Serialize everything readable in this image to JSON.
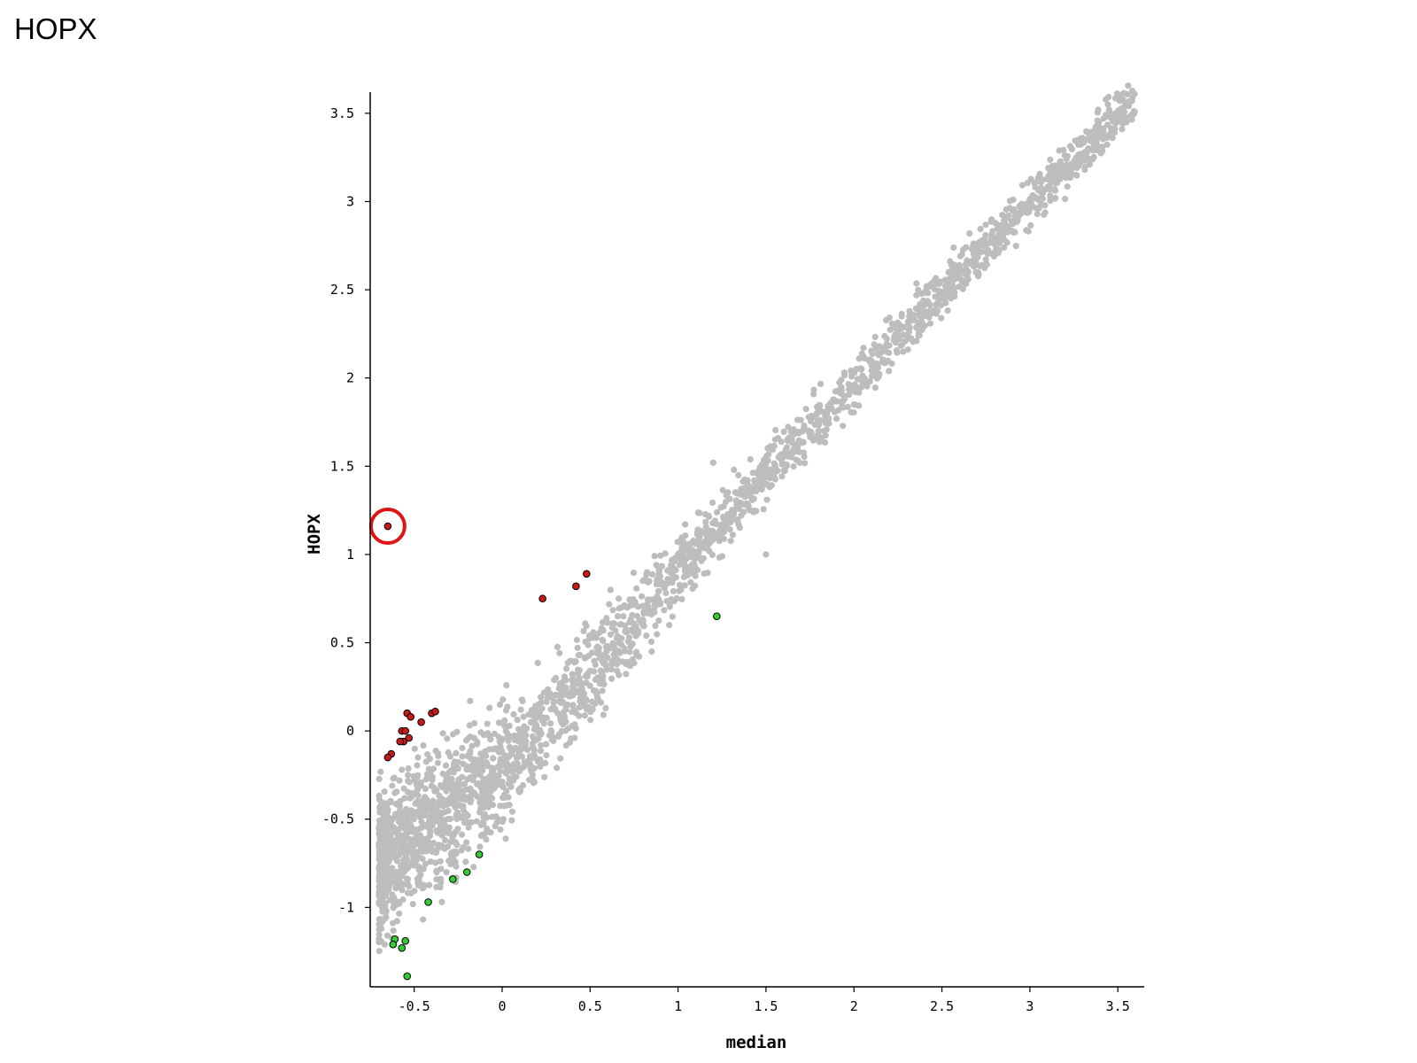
{
  "page_title": "HOPX",
  "colors": {
    "background_points": "#bdbdbd",
    "highlight_up": "#c81a1a",
    "highlight_down": "#33cc33",
    "point_outline": "#000000",
    "marker_ring": "#e01414",
    "axis": "#000000"
  },
  "chart_data": {
    "type": "scatter",
    "title": "",
    "xlabel": "median",
    "ylabel": "HOPX",
    "xlim": [
      -0.75,
      3.65
    ],
    "ylim": [
      -1.45,
      3.62
    ],
    "x_ticks": [
      -0.5,
      0,
      0.5,
      1,
      1.5,
      2,
      2.5,
      3,
      3.5
    ],
    "x_tick_labels": [
      "-0.5",
      "0",
      "0.5",
      "1",
      "1.5",
      "2",
      "2.5",
      "3",
      "3.5"
    ],
    "y_ticks": [
      -1,
      -0.5,
      0,
      0.5,
      1,
      1.5,
      2,
      2.5,
      3,
      3.5
    ],
    "y_tick_labels": [
      "-1",
      "-0.5",
      "0",
      "0.5",
      "1",
      "1.5",
      "2",
      "2.5",
      "3",
      "3.5"
    ],
    "grid": false,
    "background_cloud": {
      "description_points": "dense gray cloud along y ≈ x",
      "x_range": [
        -0.7,
        3.6
      ],
      "trend": [
        [
          -0.68,
          -0.75
        ],
        [
          0.0,
          -0.2
        ],
        [
          0.5,
          0.3
        ],
        [
          1.0,
          0.92
        ],
        [
          1.5,
          1.45
        ],
        [
          2.0,
          1.97
        ],
        [
          2.5,
          2.5
        ],
        [
          3.0,
          3.0
        ],
        [
          3.6,
          3.58
        ]
      ],
      "outliers": [
        [
          3.45,
          3.52
        ],
        [
          3.55,
          3.45
        ],
        [
          3.58,
          3.57
        ],
        [
          1.2,
          1.52
        ],
        [
          0.95,
          0.6
        ],
        [
          0.85,
          0.45
        ],
        [
          1.5,
          1.0
        ],
        [
          2.0,
          1.85
        ],
        [
          -0.55,
          -0.45
        ]
      ]
    },
    "series": [
      {
        "name": "",
        "color": "#c81a1a",
        "points": [
          [
            -0.65,
            1.16
          ],
          [
            0.23,
            0.75
          ],
          [
            0.42,
            0.82
          ],
          [
            0.48,
            0.89
          ],
          [
            -0.54,
            0.1
          ],
          [
            -0.52,
            0.08
          ],
          [
            -0.46,
            0.05
          ],
          [
            -0.4,
            0.1
          ],
          [
            -0.38,
            0.11
          ],
          [
            -0.57,
            0.0
          ],
          [
            -0.55,
            0.0
          ],
          [
            -0.53,
            -0.04
          ],
          [
            -0.56,
            -0.06
          ],
          [
            -0.58,
            -0.06
          ],
          [
            -0.63,
            -0.13
          ],
          [
            -0.65,
            -0.15
          ]
        ]
      },
      {
        "name": "",
        "color": "#33cc33",
        "points": [
          [
            1.22,
            0.65
          ],
          [
            -0.13,
            -0.7
          ],
          [
            -0.2,
            -0.8
          ],
          [
            -0.28,
            -0.84
          ],
          [
            -0.42,
            -0.97
          ],
          [
            -0.61,
            -1.18
          ],
          [
            -0.55,
            -1.19
          ],
          [
            -0.62,
            -1.21
          ],
          [
            -0.57,
            -1.23
          ],
          [
            -0.54,
            -1.39
          ]
        ]
      }
    ],
    "annotation": {
      "type": "circle",
      "point": [
        -0.65,
        1.16
      ]
    }
  }
}
